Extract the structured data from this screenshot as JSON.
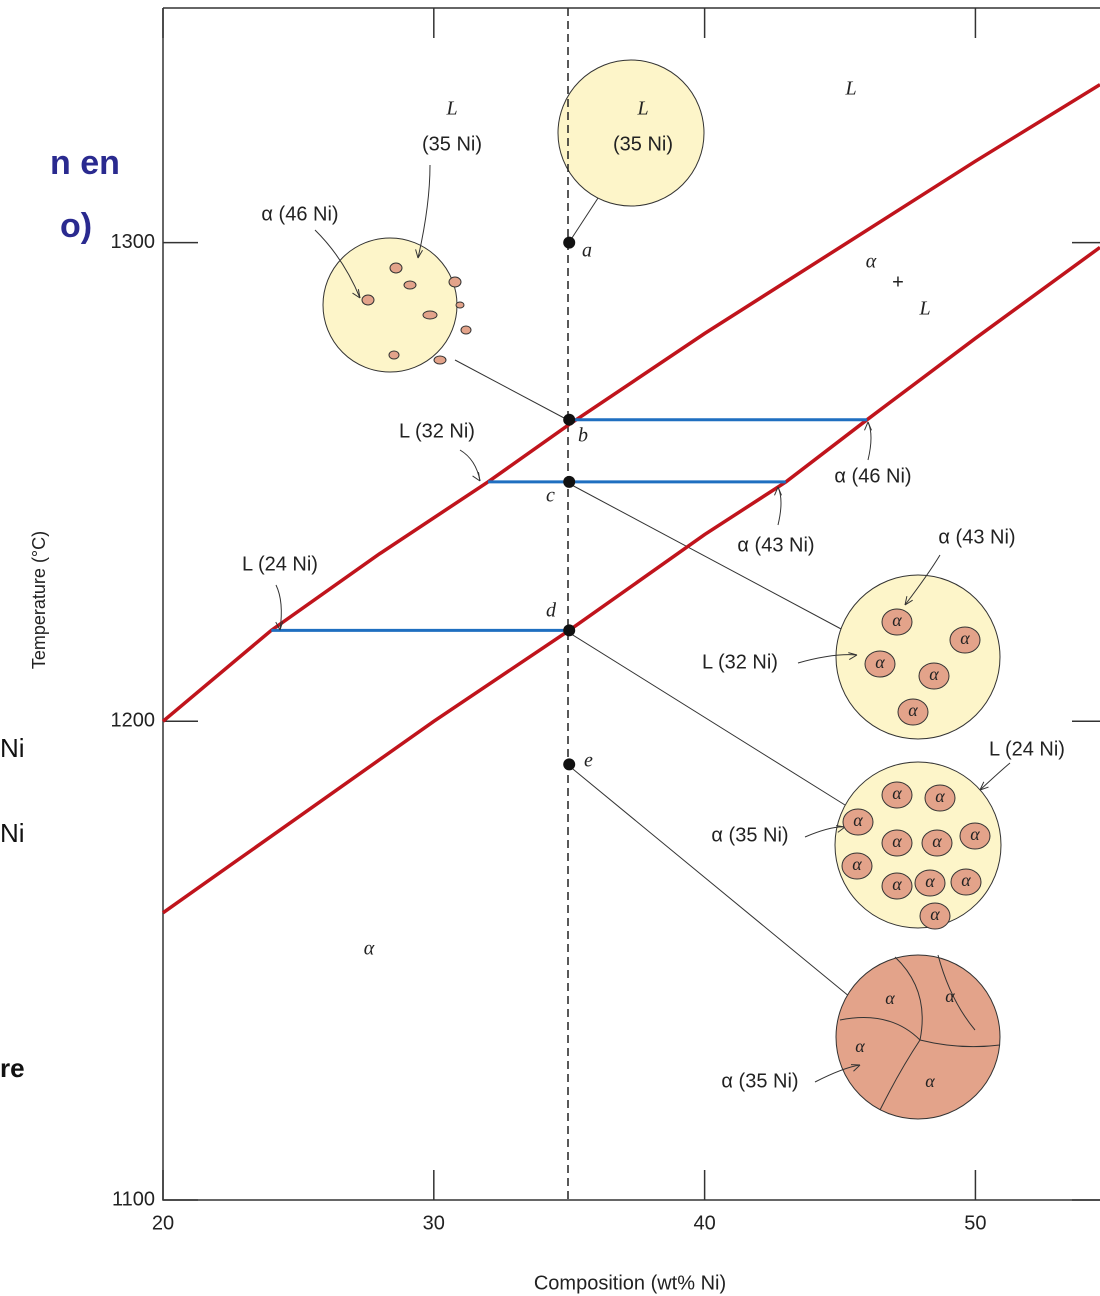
{
  "page_fragments": [
    "n en",
    "o)",
    "Ni",
    "Ni",
    "re"
  ],
  "chart_data": {
    "type": "line",
    "x_label": "Composition (wt% Ni)",
    "y_label": "Temperature (°C)",
    "xlim": [
      20,
      54.6
    ],
    "ylim": [
      1100,
      1349
    ],
    "xticks": [
      20,
      30,
      40,
      50
    ],
    "yticks": [
      1100,
      1200,
      1300
    ],
    "series": [
      {
        "color": "#c0141c",
        "x": [
          20,
          24,
          28,
          32,
          35,
          40,
          45,
          50,
          54.6
        ],
        "values": [
          1200,
          1219,
          1235,
          1250,
          1262,
          1281,
          1299,
          1317,
          1333
        ]
      },
      {
        "color": "#c0141c",
        "x": [
          20,
          25,
          30,
          35,
          40,
          43,
          46,
          50,
          54.6
        ],
        "values": [
          1160,
          1180,
          1200,
          1219,
          1239,
          1250,
          1263,
          1280,
          1299
        ]
      },
      {
        "color": "#1f6fc0",
        "x": [
          35,
          46
        ],
        "values": [
          1263,
          1263
        ]
      },
      {
        "color": "#1f6fc0",
        "x": [
          32,
          43
        ],
        "values": [
          1250,
          1250
        ]
      },
      {
        "color": "#1f6fc0",
        "x": [
          24,
          35
        ],
        "values": [
          1219,
          1219
        ]
      }
    ],
    "points": {
      "labels": [
        "a",
        "b",
        "c",
        "d",
        "e"
      ],
      "x": [
        35,
        35,
        35,
        35,
        35
      ],
      "values": [
        1300,
        1263,
        1250,
        1219,
        1191
      ]
    },
    "region_labels": [
      "L",
      "α",
      "+",
      "L",
      "α"
    ],
    "annotations": [
      "L",
      "(35 Ni)",
      "L",
      "(35 Ni)",
      "α (46 Ni)",
      "L (32 Ni)",
      "α (46 Ni)",
      "α (43 Ni)",
      "α (43 Ni)",
      "L (24 Ni)",
      "L (32 Ni)",
      "L (24 Ni)",
      "α (35 Ni)",
      "α (35 Ni)"
    ],
    "grain_label": "α"
  }
}
